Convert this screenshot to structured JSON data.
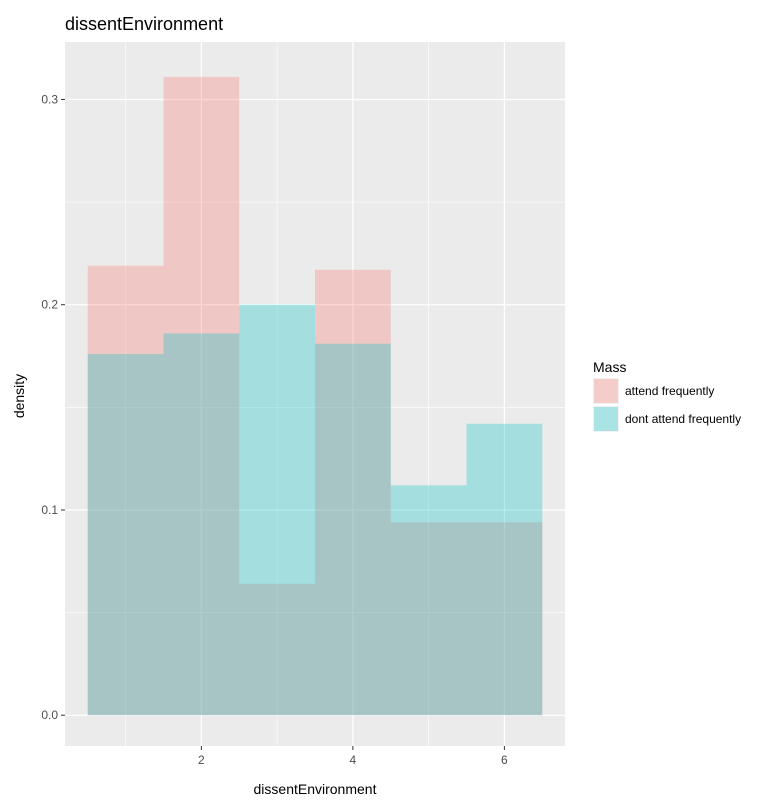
{
  "chart_data": {
    "type": "histogram",
    "title": "dissentEnvironment",
    "xlabel": "dissentEnvironment",
    "ylabel": "density",
    "xlim": [
      0.2,
      6.8
    ],
    "ylim": [
      -0.015,
      0.328
    ],
    "x_ticks": [
      2,
      4,
      6
    ],
    "y_ticks": [
      0.0,
      0.1,
      0.2,
      0.3
    ],
    "y_tick_labels": [
      "0.0",
      "0.1",
      "0.2",
      "0.3"
    ],
    "x_minor_gridlines": [
      1,
      3,
      5
    ],
    "y_minor_gridlines": [
      0.05,
      0.15,
      0.25
    ],
    "bins": [
      [
        0.5,
        1.5
      ],
      [
        1.5,
        2.5
      ],
      [
        2.5,
        3.5
      ],
      [
        3.5,
        4.5
      ],
      [
        4.5,
        5.5
      ],
      [
        5.5,
        6.5
      ]
    ],
    "legend_title": "Mass",
    "legend_position": "right",
    "grid": true,
    "series": [
      {
        "name": "attend frequently",
        "color": "#F8766D",
        "values": [
          0.219,
          0.311,
          0.064,
          0.217,
          0.094,
          0.094
        ]
      },
      {
        "name": "dont attend frequently",
        "color": "#00BFC4",
        "values": [
          0.176,
          0.186,
          0.2,
          0.181,
          0.112,
          0.142
        ]
      }
    ],
    "bar_opacity": 0.3,
    "panel_background": "#EBEBEB",
    "grid_color": "#FFFFFF"
  }
}
